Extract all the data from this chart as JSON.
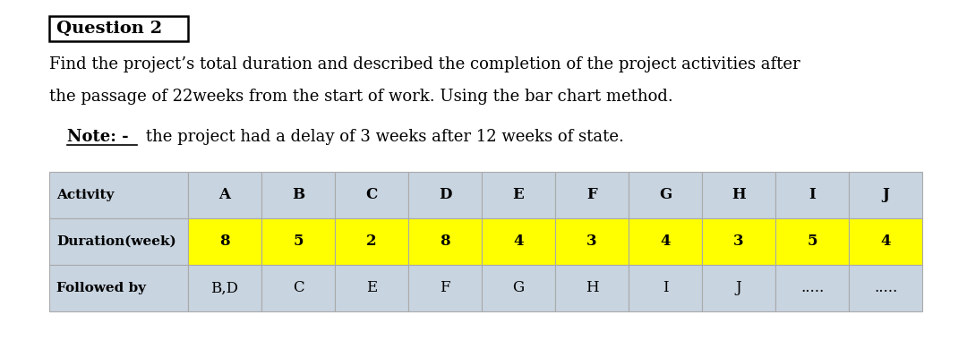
{
  "title_box": "Question 2",
  "line1": "Find the project’s total duration and described the completion of the project activities after",
  "line2": "the passage of 22weeks from the start of work. Using the bar chart method.",
  "note_bold": "Note: -",
  "note_rest": " the project had a delay of 3 weeks after 12 weeks of state.",
  "table": {
    "header_row1_label": "Activity",
    "header_row2_label": "Duration(week)",
    "header_row3_label": "Followed by",
    "columns": [
      "A",
      "B",
      "C",
      "D",
      "E",
      "F",
      "G",
      "H",
      "I",
      "J"
    ],
    "durations": [
      "8",
      "5",
      "2",
      "8",
      "4",
      "3",
      "4",
      "3",
      "5",
      "4"
    ],
    "followed_by": [
      "B,D",
      "C",
      "E",
      "F",
      "G",
      "H",
      "I",
      "J",
      ".....",
      "....."
    ],
    "header_bg": "#c8d4e0",
    "duration_bg": "#ffff00",
    "followed_bg": "#c8d4e0",
    "border_color": "#aaaaaa",
    "text_color": "#000000"
  },
  "bg_color": "#ffffff",
  "font_size_title": 14,
  "font_size_body": 13,
  "font_size_note": 13,
  "font_size_table_label": 11,
  "font_size_table_data": 12
}
